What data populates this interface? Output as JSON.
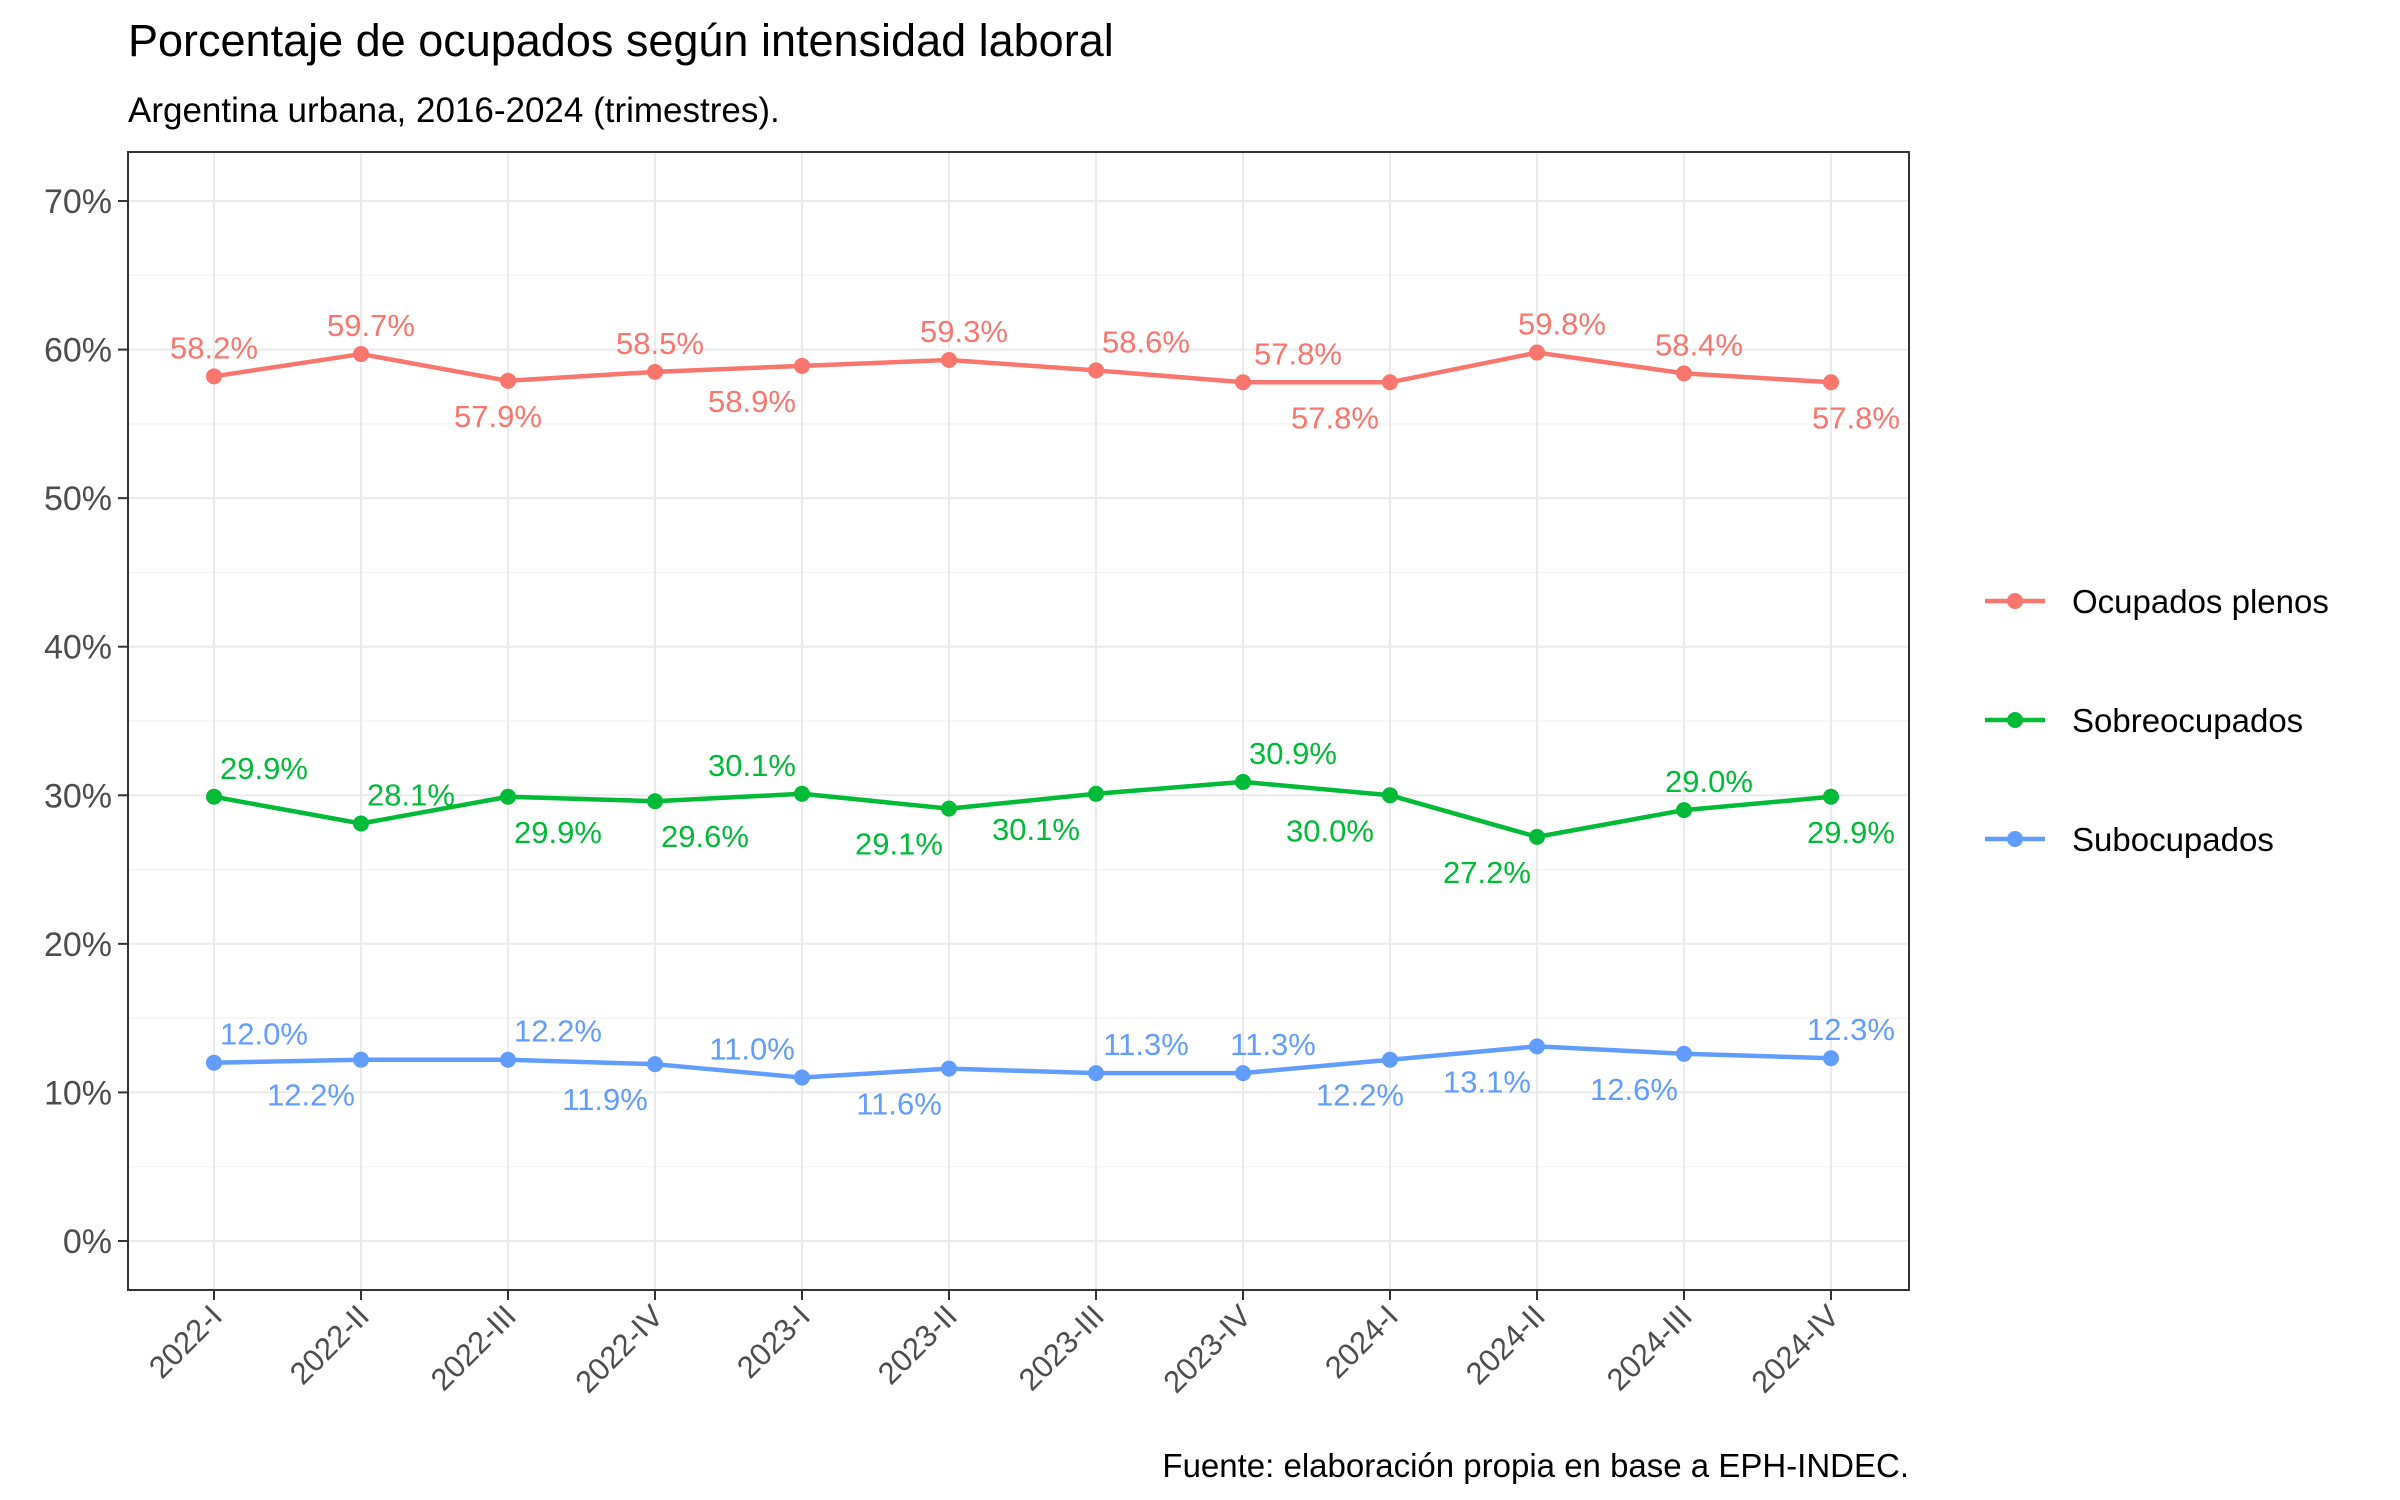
{
  "chart_data": {
    "type": "line",
    "title": "Porcentaje de ocupados según intensidad laboral",
    "subtitle": "Argentina urbana, 2016-2024 (trimestres).",
    "caption": "Fuente: elaboración propia en base a EPH-INDEC.",
    "xlabel": "",
    "ylabel": "",
    "categories": [
      "2022-I",
      "2022-II",
      "2022-III",
      "2022-IV",
      "2023-I",
      "2023-II",
      "2023-III",
      "2023-IV",
      "2024-I",
      "2024-II",
      "2024-III",
      "2024-IV"
    ],
    "ylim": [
      -3.3,
      73.3
    ],
    "yticks": [
      0,
      10,
      20,
      30,
      40,
      50,
      60,
      70
    ],
    "ytick_labels": [
      "0%",
      "10%",
      "20%",
      "30%",
      "40%",
      "50%",
      "60%",
      "70%"
    ],
    "grid": true,
    "legend_position": "right",
    "series": [
      {
        "name": "Ocupados plenos",
        "color": "#F8766D",
        "values": [
          58.2,
          59.7,
          57.9,
          58.5,
          58.9,
          59.3,
          58.6,
          57.8,
          57.8,
          59.8,
          58.4,
          57.8
        ],
        "labels": [
          "58.2%",
          "59.7%",
          "57.9%",
          "58.5%",
          "58.9%",
          "59.3%",
          "58.6%",
          "57.8%",
          "57.8%",
          "59.8%",
          "58.4%",
          "57.8%"
        ]
      },
      {
        "name": "Sobreocupados",
        "color": "#00BA38",
        "values": [
          29.9,
          28.1,
          29.9,
          29.6,
          30.1,
          29.1,
          30.1,
          30.9,
          30.0,
          27.2,
          29.0,
          29.9
        ],
        "labels": [
          "29.9%",
          "28.1%",
          "29.9%",
          "29.6%",
          "30.1%",
          "29.1%",
          "30.1%",
          "30.9%",
          "30.0%",
          "27.2%",
          "29.0%",
          "29.9%"
        ]
      },
      {
        "name": "Subocupados",
        "color": "#619CFF",
        "values": [
          12.0,
          12.2,
          12.2,
          11.9,
          11.0,
          11.6,
          11.3,
          11.3,
          12.2,
          13.1,
          12.6,
          12.3
        ],
        "labels": [
          "12.0%",
          "12.2%",
          "12.2%",
          "11.9%",
          "11.0%",
          "11.6%",
          "11.3%",
          "11.3%",
          "12.2%",
          "13.1%",
          "12.6%",
          "12.3%"
        ]
      }
    ]
  }
}
